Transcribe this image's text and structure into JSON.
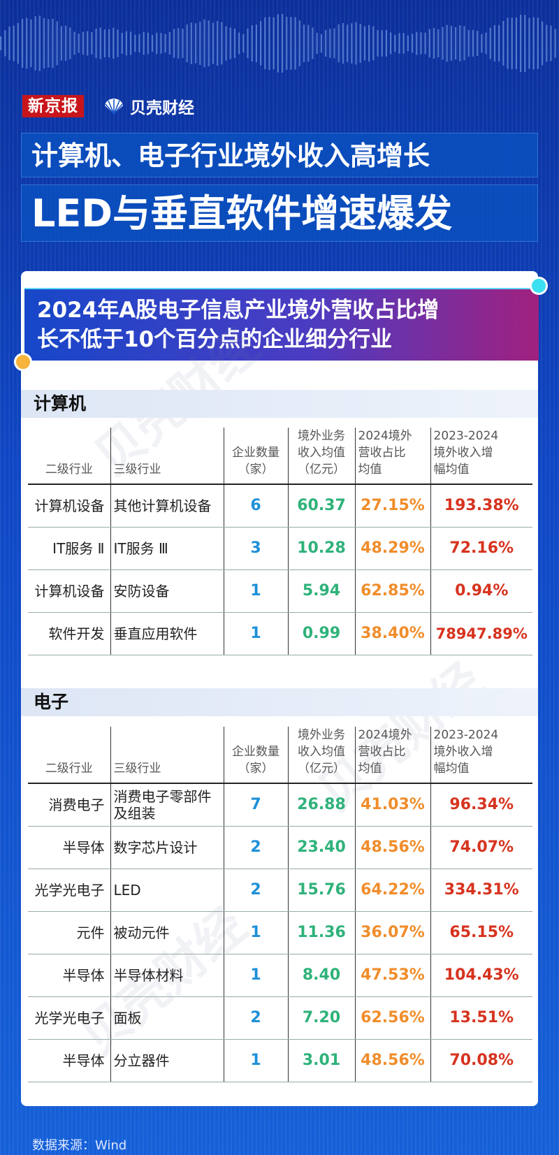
{
  "brand": {
    "xjb": "新京报",
    "beike": "贝壳财经"
  },
  "headline": {
    "line1": "计算机、电子行业境外收入高增长",
    "line2": "LED与垂直软件增速爆发"
  },
  "subtitle": {
    "line1": "2024年A股电子信息产业境外营收占比增",
    "line2": "长不低于10个百分点的企业细分行业"
  },
  "columns": {
    "l2": "二级行业",
    "l3": "三级行业",
    "count": [
      "企业数量",
      "（家）"
    ],
    "rev": [
      "境外业务",
      "收入均值",
      "（亿元）"
    ],
    "share": [
      "2024境外",
      "营收占比",
      "均值"
    ],
    "growth": [
      "2023-2024",
      "境外收入增",
      "幅均值"
    ]
  },
  "sections": [
    {
      "title": "计算机",
      "rows": [
        {
          "l2": "计算机设备",
          "l3": "其他计算机设备",
          "count": "6",
          "rev": "60.37",
          "share": "27.15%",
          "growth": "193.38%"
        },
        {
          "l2": "IT服务 Ⅱ",
          "l3": "IT服务 Ⅲ",
          "count": "3",
          "rev": "10.28",
          "share": "48.29%",
          "growth": "72.16%"
        },
        {
          "l2": "计算机设备",
          "l3": "安防设备",
          "count": "1",
          "rev": "5.94",
          "share": "62.85%",
          "growth": "0.94%"
        },
        {
          "l2": "软件开发",
          "l3": "垂直应用软件",
          "count": "1",
          "rev": "0.99",
          "share": "38.40%",
          "growth": "78947.89%"
        }
      ]
    },
    {
      "title": "电子",
      "rows": [
        {
          "l2": "消费电子",
          "l3": "消费电子零部件及组装",
          "count": "7",
          "rev": "26.88",
          "share": "41.03%",
          "growth": "96.34%"
        },
        {
          "l2": "半导体",
          "l3": "数字芯片设计",
          "count": "2",
          "rev": "23.40",
          "share": "48.56%",
          "growth": "74.07%"
        },
        {
          "l2": "光学光电子",
          "l3": "LED",
          "count": "2",
          "rev": "15.76",
          "share": "64.22%",
          "growth": "334.31%"
        },
        {
          "l2": "元件",
          "l3": "被动元件",
          "count": "1",
          "rev": "11.36",
          "share": "36.07%",
          "growth": "65.15%"
        },
        {
          "l2": "半导体",
          "l3": "半导体材料",
          "count": "1",
          "rev": "8.40",
          "share": "47.53%",
          "growth": "104.43%"
        },
        {
          "l2": "光学光电子",
          "l3": "面板",
          "count": "2",
          "rev": "7.20",
          "share": "62.56%",
          "growth": "13.51%"
        },
        {
          "l2": "半导体",
          "l3": "分立器件",
          "count": "1",
          "rev": "3.01",
          "share": "48.56%",
          "growth": "70.08%"
        }
      ]
    }
  ],
  "source": "数据来源：Wind",
  "colors": {
    "count": "#1e90d8",
    "rev": "#2fb27a",
    "share": "#f08d2b",
    "growth": "#d6331f"
  }
}
